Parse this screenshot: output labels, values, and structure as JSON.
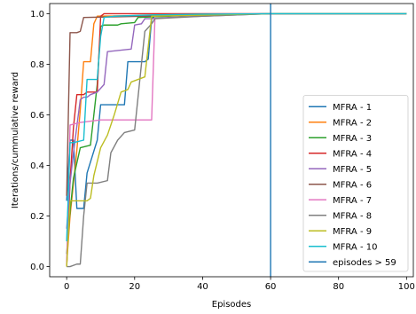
{
  "chart_data": {
    "type": "line",
    "title": "",
    "xlabel": "Episodes",
    "ylabel": "Iterations/cummulative reward",
    "xlim": [
      -5,
      102
    ],
    "ylim": [
      -0.04,
      1.04
    ],
    "xticks": [
      0,
      20,
      40,
      60,
      80,
      100
    ],
    "xtick_labels": [
      "0",
      "20",
      "40",
      "60",
      "80",
      "100"
    ],
    "yticks": [
      0.0,
      0.2,
      0.4,
      0.6,
      0.8,
      1.0
    ],
    "ytick_labels": [
      "0.0",
      "0.2",
      "0.4",
      "0.6",
      "0.8",
      "1.0"
    ],
    "grid": false,
    "legend_position": "lower-right",
    "vline": {
      "name": "episodes > 59",
      "x": 60,
      "color": "#1f77b4"
    },
    "series": [
      {
        "name": "MFRA - 1",
        "color": "#1f77b4",
        "x": [
          0,
          1,
          2,
          3,
          5,
          6,
          9,
          10,
          17,
          18,
          23,
          24,
          25,
          26,
          40,
          60,
          100
        ],
        "y": [
          0.26,
          0.5,
          0.5,
          0.23,
          0.23,
          0.37,
          0.5,
          0.64,
          0.64,
          0.81,
          0.81,
          0.82,
          0.98,
          0.99,
          0.995,
          1.0,
          1.0
        ]
      },
      {
        "name": "MFRA - 2",
        "color": "#ff7f0e",
        "x": [
          0,
          1,
          3,
          4,
          5,
          7,
          8,
          9,
          60,
          100
        ],
        "y": [
          0.01,
          0.2,
          0.46,
          0.62,
          0.81,
          0.81,
          0.96,
          0.99,
          1.0,
          1.0
        ]
      },
      {
        "name": "MFRA - 3",
        "color": "#2ca02c",
        "x": [
          0,
          1,
          2,
          4,
          7,
          9,
          10,
          11,
          15,
          16,
          20,
          21,
          40,
          60,
          100
        ],
        "y": [
          0.05,
          0.22,
          0.35,
          0.47,
          0.48,
          0.72,
          0.95,
          0.955,
          0.955,
          0.96,
          0.965,
          0.985,
          0.995,
          1.0,
          1.0
        ]
      },
      {
        "name": "MFRA - 4",
        "color": "#d62728",
        "x": [
          0,
          1,
          2,
          3,
          5,
          6,
          9,
          10,
          11,
          60,
          100
        ],
        "y": [
          0.0,
          0.34,
          0.55,
          0.68,
          0.68,
          0.69,
          0.69,
          0.99,
          1.0,
          1.0,
          1.0
        ]
      },
      {
        "name": "MFRA - 5",
        "color": "#9467bd",
        "x": [
          0,
          1,
          2,
          4,
          5,
          6,
          7,
          9,
          11,
          12,
          19,
          20,
          22,
          23,
          25,
          30,
          60,
          100
        ],
        "y": [
          0.15,
          0.33,
          0.45,
          0.66,
          0.67,
          0.67,
          0.68,
          0.69,
          0.72,
          0.85,
          0.86,
          0.955,
          0.96,
          0.98,
          0.98,
          0.985,
          1.0,
          1.0
        ]
      },
      {
        "name": "MFRA - 6",
        "color": "#8c564b",
        "x": [
          0,
          1,
          3,
          4,
          5,
          60,
          100
        ],
        "y": [
          0.28,
          0.925,
          0.925,
          0.93,
          0.985,
          1.0,
          1.0
        ]
      },
      {
        "name": "MFRA - 7",
        "color": "#e377c2",
        "x": [
          0,
          1,
          4,
          10,
          17,
          25,
          26,
          60,
          100
        ],
        "y": [
          0.01,
          0.56,
          0.57,
          0.58,
          0.58,
          0.58,
          0.995,
          1.0,
          1.0
        ]
      },
      {
        "name": "MFRA - 8",
        "color": "#7f7f7f",
        "x": [
          0,
          1,
          3,
          4,
          5,
          6,
          9,
          12,
          13,
          15,
          17,
          20,
          23,
          25,
          26,
          40,
          60,
          100
        ],
        "y": [
          0.0,
          0.0,
          0.01,
          0.01,
          0.2,
          0.33,
          0.33,
          0.34,
          0.45,
          0.5,
          0.53,
          0.54,
          0.93,
          0.96,
          0.98,
          0.99,
          1.0,
          1.0
        ]
      },
      {
        "name": "MFRA - 9",
        "color": "#bcbd22",
        "x": [
          0,
          1,
          2,
          6,
          7,
          8,
          10,
          12,
          14,
          16,
          18,
          19,
          21,
          23,
          24,
          25,
          60,
          100
        ],
        "y": [
          0.0,
          0.26,
          0.26,
          0.26,
          0.27,
          0.36,
          0.47,
          0.52,
          0.6,
          0.69,
          0.7,
          0.73,
          0.74,
          0.75,
          0.87,
          0.99,
          1.0,
          1.0
        ]
      },
      {
        "name": "MFRA - 10",
        "color": "#17becf",
        "x": [
          0,
          1,
          2,
          5,
          6,
          9,
          10,
          11,
          14,
          25,
          40,
          60,
          100
        ],
        "y": [
          0.1,
          0.49,
          0.49,
          0.5,
          0.74,
          0.74,
          0.91,
          0.985,
          0.99,
          0.995,
          0.998,
          1.0,
          1.0
        ]
      }
    ]
  }
}
